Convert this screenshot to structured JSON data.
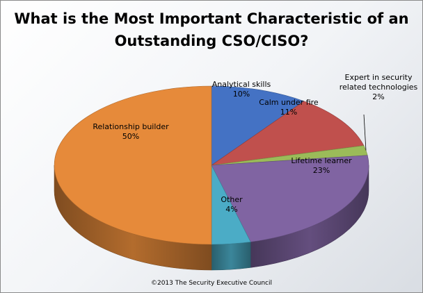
{
  "chart_data": {
    "type": "pie",
    "title_lines": [
      "What is the Most Important Characteristic of an",
      "Outstanding CSO/CISO?"
    ],
    "slices": [
      {
        "label_lines": [
          "Analytical skills"
        ],
        "value": 10,
        "value_text": "10%",
        "color": "#4472C4"
      },
      {
        "label_lines": [
          "Calm under fire"
        ],
        "value": 11,
        "value_text": "11%",
        "color": "#C0504D"
      },
      {
        "label_lines": [
          "Expert in security",
          "related technologies"
        ],
        "value": 2,
        "value_text": "2%",
        "color": "#9BBB59"
      },
      {
        "label_lines": [
          "Lifetime learner"
        ],
        "value": 23,
        "value_text": "23%",
        "color": "#8064A2"
      },
      {
        "label_lines": [
          "Other"
        ],
        "value": 4,
        "value_text": "4%",
        "color": "#4BACC6"
      },
      {
        "label_lines": [
          "Relationship builder"
        ],
        "value": 50,
        "value_text": "50%",
        "color": "#E68A3A"
      }
    ],
    "footer": "©2013 The Security Executive Council"
  }
}
